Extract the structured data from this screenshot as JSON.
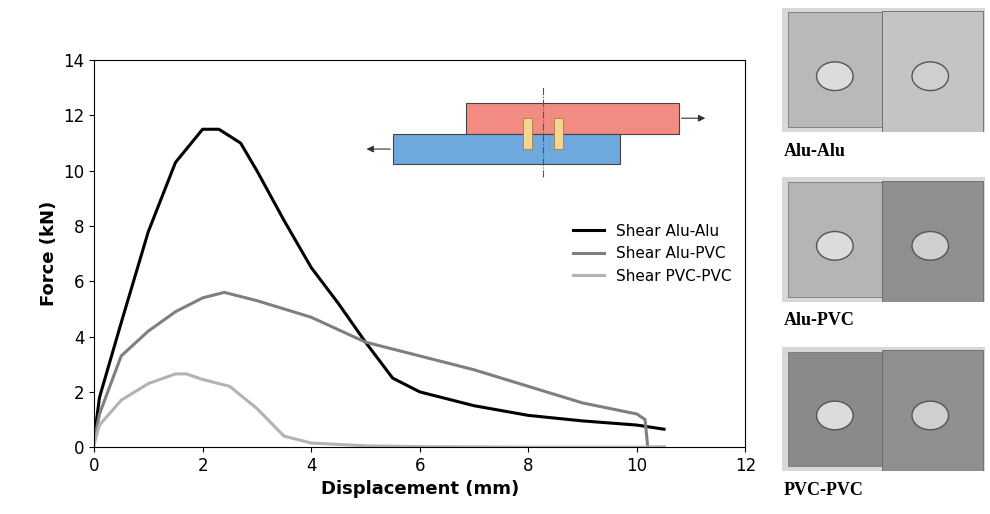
{
  "chart_data": {
    "type": "line",
    "x_label": "Displacement (mm)",
    "y_label": "Force (kN)",
    "xlim": [
      0,
      12
    ],
    "xticks": [
      0,
      2,
      4,
      6,
      8,
      10,
      12
    ],
    "ylim": [
      0,
      14
    ],
    "yticks": [
      0,
      2,
      4,
      6,
      8,
      10,
      12,
      14
    ],
    "grid": false,
    "legend": "center right",
    "series": [
      {
        "name": "Shear Alu-Alu",
        "color": "#000000",
        "line_style": "solid",
        "x": [
          0,
          0.1,
          0.5,
          1,
          1.5,
          2,
          2.3,
          2.7,
          3,
          3.5,
          4,
          4.5,
          5,
          5.5,
          6,
          7,
          8,
          9,
          10,
          10.5
        ],
        "values": [
          0.3,
          1.8,
          4.5,
          7.8,
          10.3,
          11.5,
          11.5,
          11.0,
          10.0,
          8.2,
          6.5,
          5.2,
          3.8,
          2.5,
          2.0,
          1.5,
          1.15,
          0.95,
          0.8,
          0.65
        ]
      },
      {
        "name": "Shear Alu-PVC",
        "color": "#7f7f7f",
        "line_style": "solid",
        "x": [
          0,
          0.1,
          0.5,
          1,
          1.5,
          2,
          2.4,
          3,
          4,
          5,
          6,
          7,
          8,
          9,
          10,
          10.15,
          10.2,
          10.5
        ],
        "values": [
          0.2,
          1.2,
          3.3,
          4.2,
          4.9,
          5.4,
          5.6,
          5.3,
          4.7,
          3.8,
          3.3,
          2.8,
          2.2,
          1.6,
          1.2,
          1.0,
          0,
          0
        ]
      },
      {
        "name": "Shear PVC-PVC",
        "color": "#b3b3b3",
        "line_style": "solid",
        "x": [
          0,
          0.1,
          0.5,
          1,
          1.5,
          1.7,
          2,
          2.5,
          3,
          3.5,
          4,
          5,
          6,
          8,
          10.5
        ],
        "values": [
          0.1,
          0.8,
          1.7,
          2.3,
          2.65,
          2.65,
          2.45,
          2.2,
          1.4,
          0.4,
          0.15,
          0.05,
          0.02,
          0,
          0
        ]
      }
    ]
  },
  "photo_labels": [
    "Alu-Alu",
    "Alu-PVC",
    "PVC-PVC"
  ]
}
